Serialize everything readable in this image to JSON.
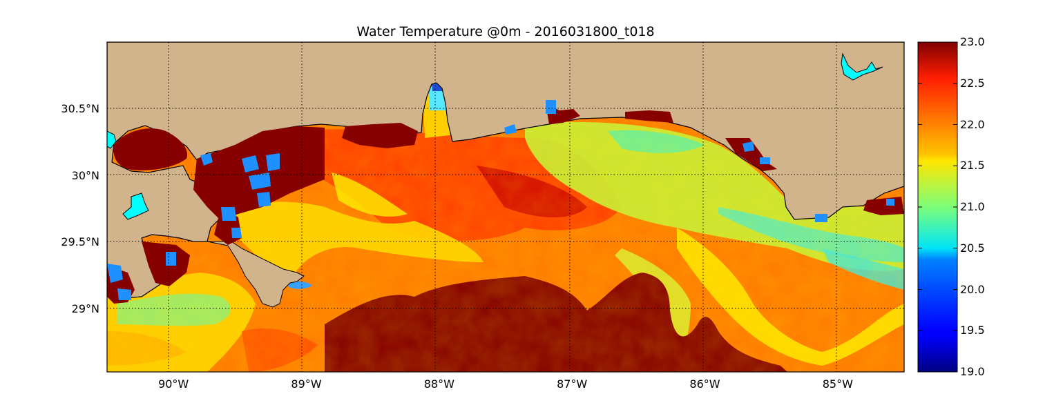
{
  "title": "Water Temperature @0m - 2016031800_t018",
  "map": {
    "lon_range": [
      -90.5,
      -84.5
    ],
    "lat_range": [
      28.53,
      31.0
    ],
    "lon_ticks": [
      {
        "value": -90,
        "label": "90°W"
      },
      {
        "value": -89,
        "label": "89°W"
      },
      {
        "value": -88,
        "label": "88°W"
      },
      {
        "value": -87,
        "label": "87°W"
      },
      {
        "value": -86,
        "label": "86°W"
      },
      {
        "value": -85,
        "label": "85°W"
      }
    ],
    "lat_ticks": [
      {
        "value": 30.5,
        "label": "30.5°N"
      },
      {
        "value": 30.0,
        "label": "30°N"
      },
      {
        "value": 29.5,
        "label": "29.5°N"
      },
      {
        "value": 29.0,
        "label": "29°N"
      }
    ],
    "grid": true,
    "land_color": "#d2b48c",
    "lake_color": "#00ffff",
    "coast_color": "#000000"
  },
  "colorbar": {
    "min": 19.0,
    "max": 23.0,
    "colormap": "jet",
    "placement": "right",
    "ticks": [
      {
        "value": 23.0,
        "label": "23.0"
      },
      {
        "value": 22.5,
        "label": "22.5"
      },
      {
        "value": 22.0,
        "label": "22.0"
      },
      {
        "value": 21.5,
        "label": "21.5"
      },
      {
        "value": 21.0,
        "label": "21.0"
      },
      {
        "value": 20.5,
        "label": "20.5"
      },
      {
        "value": 20.0,
        "label": "20.0"
      },
      {
        "value": 19.5,
        "label": "19.5"
      },
      {
        "value": 19.0,
        "label": "19.0"
      }
    ]
  }
}
